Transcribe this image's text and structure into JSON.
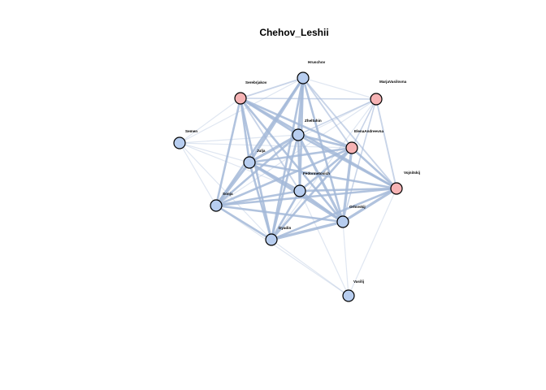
{
  "title": "Chehov_Leshii",
  "colors": {
    "male": "#b7cdef",
    "female": "#f6b3b4",
    "edge": "#a3b8d8",
    "stroke": "#000000"
  },
  "nodes": [
    {
      "id": "Hruschov",
      "label": "Hruschov",
      "group": "male"
    },
    {
      "id": "Serebrjakov",
      "label": "Serebrjakov",
      "group": "female"
    },
    {
      "id": "MarjaVasilovna",
      "label": "MarjaVasilovna",
      "group": "female"
    },
    {
      "id": "Zheltuhin",
      "label": "Zheltuhin",
      "group": "male"
    },
    {
      "id": "Semen",
      "label": "Semen",
      "group": "male"
    },
    {
      "id": "ElenaAndreevna",
      "label": "ElenaAndreevna",
      "group": "female"
    },
    {
      "id": "Julja",
      "label": "Julja",
      "group": "male"
    },
    {
      "id": "Voynitskij",
      "label": "Vojnitskij",
      "group": "female"
    },
    {
      "id": "Fedorovich",
      "label": "Fedormetovich",
      "group": "male"
    },
    {
      "id": "Sonja",
      "label": "Sonja",
      "group": "male"
    },
    {
      "id": "Orlovskij",
      "label": "Orlovskij",
      "group": "male"
    },
    {
      "id": "Dyadin",
      "label": "Dyadin",
      "group": "male"
    },
    {
      "id": "Vasilij",
      "label": "Vasilij",
      "group": "male"
    }
  ],
  "edges": [
    {
      "source": "Hruschov",
      "target": "Zheltuhin",
      "weight": 4
    },
    {
      "source": "Hruschov",
      "target": "Julja",
      "weight": 4
    },
    {
      "source": "Hruschov",
      "target": "Fedorovich",
      "weight": 3
    },
    {
      "source": "Hruschov",
      "target": "Orlovskij",
      "weight": 3
    },
    {
      "source": "Hruschov",
      "target": "Sonja",
      "weight": 3
    },
    {
      "source": "Hruschov",
      "target": "Dyadin",
      "weight": 3
    },
    {
      "source": "Hruschov",
      "target": "ElenaAndreevna",
      "weight": 2
    },
    {
      "source": "Hruschov",
      "target": "Serebrjakov",
      "weight": 2
    },
    {
      "source": "Hruschov",
      "target": "Voynitskij",
      "weight": 2
    },
    {
      "source": "Hruschov",
      "target": "MarjaVasilovna",
      "weight": 1
    },
    {
      "source": "Hruschov",
      "target": "Semen",
      "weight": 1
    },
    {
      "source": "Serebrjakov",
      "target": "Zheltuhin",
      "weight": 3
    },
    {
      "source": "Serebrjakov",
      "target": "ElenaAndreevna",
      "weight": 3
    },
    {
      "source": "Serebrjakov",
      "target": "Julja",
      "weight": 3
    },
    {
      "source": "Serebrjakov",
      "target": "Sonja",
      "weight": 3
    },
    {
      "source": "Serebrjakov",
      "target": "Dyadin",
      "weight": 3
    },
    {
      "source": "Serebrjakov",
      "target": "Fedorovich",
      "weight": 2
    },
    {
      "source": "Serebrjakov",
      "target": "Orlovskij",
      "weight": 3
    },
    {
      "source": "Serebrjakov",
      "target": "Voynitskij",
      "weight": 3
    },
    {
      "source": "Serebrjakov",
      "target": "MarjaVasilovna",
      "weight": 1.5
    },
    {
      "source": "Serebrjakov",
      "target": "Semen",
      "weight": 1
    },
    {
      "source": "MarjaVasilovna",
      "target": "Zheltuhin",
      "weight": 1.5
    },
    {
      "source": "MarjaVasilovna",
      "target": "ElenaAndreevna",
      "weight": 1.5
    },
    {
      "source": "MarjaVasilovna",
      "target": "Voynitskij",
      "weight": 2
    },
    {
      "source": "MarjaVasilovna",
      "target": "Julja",
      "weight": 1
    },
    {
      "source": "MarjaVasilovna",
      "target": "Sonja",
      "weight": 1
    },
    {
      "source": "MarjaVasilovna",
      "target": "Orlovskij",
      "weight": 1.5
    },
    {
      "source": "MarjaVasilovna",
      "target": "Dyadin",
      "weight": 1
    },
    {
      "source": "Zheltuhin",
      "target": "Julja",
      "weight": 4
    },
    {
      "source": "Zheltuhin",
      "target": "ElenaAndreevna",
      "weight": 3
    },
    {
      "source": "Zheltuhin",
      "target": "Fedorovich",
      "weight": 3
    },
    {
      "source": "Zheltuhin",
      "target": "Sonja",
      "weight": 3
    },
    {
      "source": "Zheltuhin",
      "target": "Orlovskij",
      "weight": 4
    },
    {
      "source": "Zheltuhin",
      "target": "Dyadin",
      "weight": 3
    },
    {
      "source": "Zheltuhin",
      "target": "Voynitskij",
      "weight": 3
    },
    {
      "source": "Zheltuhin",
      "target": "Semen",
      "weight": 1
    },
    {
      "source": "Semen",
      "target": "Julja",
      "weight": 1
    },
    {
      "source": "Semen",
      "target": "Sonja",
      "weight": 1
    },
    {
      "source": "Semen",
      "target": "ElenaAndreevna",
      "weight": 1
    },
    {
      "source": "Semen",
      "target": "Fedorovich",
      "weight": 1
    },
    {
      "source": "Semen",
      "target": "Dyadin",
      "weight": 1
    },
    {
      "source": "ElenaAndreevna",
      "target": "Julja",
      "weight": 3
    },
    {
      "source": "ElenaAndreevna",
      "target": "Fedorovich",
      "weight": 3
    },
    {
      "source": "ElenaAndreevna",
      "target": "Sonja",
      "weight": 3
    },
    {
      "source": "ElenaAndreevna",
      "target": "Orlovskij",
      "weight": 4
    },
    {
      "source": "ElenaAndreevna",
      "target": "Dyadin",
      "weight": 3
    },
    {
      "source": "ElenaAndreevna",
      "target": "Voynitskij",
      "weight": 3
    },
    {
      "source": "Julja",
      "target": "Fedorovich",
      "weight": 3
    },
    {
      "source": "Julja",
      "target": "Sonja",
      "weight": 4
    },
    {
      "source": "Julja",
      "target": "Orlovskij",
      "weight": 4
    },
    {
      "source": "Julja",
      "target": "Dyadin",
      "weight": 3
    },
    {
      "source": "Julja",
      "target": "Voynitskij",
      "weight": 3
    },
    {
      "source": "Voynitskij",
      "target": "Fedorovich",
      "weight": 3
    },
    {
      "source": "Voynitskij",
      "target": "Sonja",
      "weight": 3
    },
    {
      "source": "Voynitskij",
      "target": "Orlovskij",
      "weight": 4
    },
    {
      "source": "Voynitskij",
      "target": "Dyadin",
      "weight": 3
    },
    {
      "source": "Voynitskij",
      "target": "Vasilij",
      "weight": 1
    },
    {
      "source": "Fedorovich",
      "target": "Sonja",
      "weight": 3
    },
    {
      "source": "Fedorovich",
      "target": "Orlovskij",
      "weight": 3
    },
    {
      "source": "Fedorovich",
      "target": "Dyadin",
      "weight": 3
    },
    {
      "source": "Sonja",
      "target": "Orlovskij",
      "weight": 3
    },
    {
      "source": "Sonja",
      "target": "Dyadin",
      "weight": 3
    },
    {
      "source": "Orlovskij",
      "target": "Dyadin",
      "weight": 4
    },
    {
      "source": "Orlovskij",
      "target": "Vasilij",
      "weight": 1
    },
    {
      "source": "Dyadin",
      "target": "Vasilij",
      "weight": 1
    },
    {
      "source": "Fedorovich",
      "target": "Vasilij",
      "weight": 1
    },
    {
      "source": "Sonja",
      "target": "Vasilij",
      "weight": 1
    }
  ]
}
